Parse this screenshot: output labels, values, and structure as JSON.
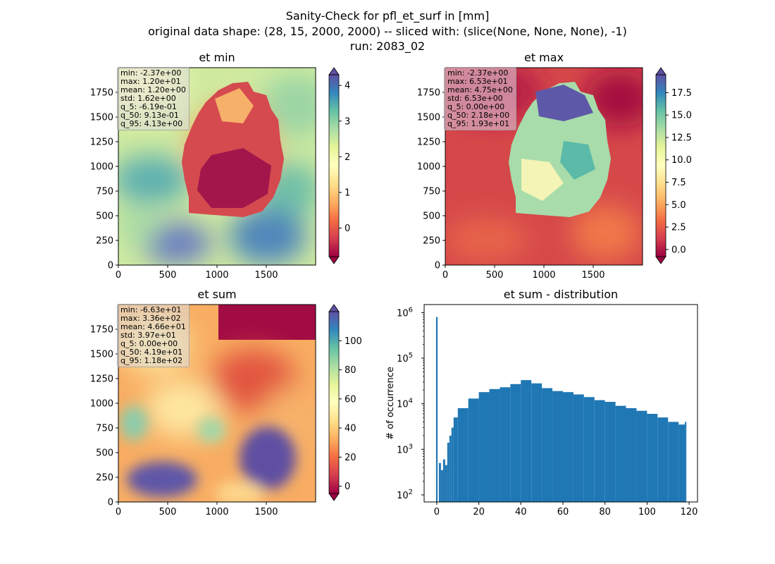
{
  "figure": {
    "title_lines": [
      "Sanity-Check for pfl_et_surf in [mm]",
      "original data shape: (28, 15, 2000, 2000) -- sliced with: (slice(None, None, None), -1)",
      "run: 2083_02"
    ]
  },
  "colormap": {
    "name": "Spectral",
    "stops": [
      "#9e0142",
      "#d53e4f",
      "#f46d43",
      "#fdae61",
      "#fee08b",
      "#ffffbf",
      "#e6f598",
      "#abdda4",
      "#66c2a5",
      "#3288bd",
      "#5e4fa2"
    ]
  },
  "chart_data": [
    {
      "type": "heatmap",
      "title": "et min",
      "x_ticks": [
        "0",
        "500",
        "1000",
        "1500"
      ],
      "y_ticks": [
        "0",
        "250",
        "500",
        "750",
        "1000",
        "1250",
        "1500",
        "1750"
      ],
      "xlim": [
        0,
        2000
      ],
      "ylim": [
        0,
        2000
      ],
      "colorbar": {
        "range": [
          -0.8,
          4.3
        ],
        "ticks": [
          "0",
          "1",
          "2",
          "3",
          "4"
        ],
        "tick_values": [
          0,
          1,
          2,
          3,
          4
        ],
        "extend": "both"
      },
      "stats": [
        "min: -2.37e+00",
        "max: 1.20e+01",
        "mean: 1.20e+00",
        "std: 1.62e+00",
        "q_5: -6.19e-01",
        "q_50: 9.13e-01",
        "q_95: 4.13e+00"
      ]
    },
    {
      "type": "heatmap",
      "title": "et max",
      "x_ticks": [
        "0",
        "500",
        "1000",
        "1500"
      ],
      "y_ticks": [
        "0",
        "250",
        "500",
        "750",
        "1000",
        "1250",
        "1500",
        "1750"
      ],
      "xlim": [
        0,
        2000
      ],
      "ylim": [
        0,
        2000
      ],
      "colorbar": {
        "range": [
          -0.8,
          19.5
        ],
        "ticks": [
          "0.0",
          "2.5",
          "5.0",
          "7.5",
          "10.0",
          "12.5",
          "15.0",
          "17.5"
        ],
        "tick_values": [
          0,
          2.5,
          5,
          7.5,
          10,
          12.5,
          15,
          17.5
        ],
        "extend": "both"
      },
      "stats": [
        "min: -2.37e+00",
        "max: 6.53e+01",
        "mean: 4.75e+00",
        "std: 6.53e+00",
        "q_5: 0.00e+00",
        "q_50: 2.18e+00",
        "q_95: 1.93e+01"
      ]
    },
    {
      "type": "heatmap",
      "title": "et sum",
      "x_ticks": [
        "0",
        "500",
        "1000",
        "1500"
      ],
      "y_ticks": [
        "0",
        "250",
        "500",
        "750",
        "1000",
        "1250",
        "1500",
        "1750"
      ],
      "xlim": [
        0,
        2000
      ],
      "ylim": [
        0,
        2000
      ],
      "colorbar": {
        "range": [
          -5,
          120
        ],
        "ticks": [
          "0",
          "20",
          "40",
          "60",
          "80",
          "100"
        ],
        "tick_values": [
          0,
          20,
          40,
          60,
          80,
          100
        ],
        "extend": "both"
      },
      "stats": [
        "min: -6.63e+01",
        "max: 3.36e+02",
        "mean: 4.66e+01",
        "std: 3.97e+01",
        "q_5: 0.00e+00",
        "q_50: 4.19e+01",
        "q_95: 1.18e+02"
      ]
    },
    {
      "type": "bar",
      "title": "et sum - distribution",
      "ylabel": "# of occurrence",
      "yscale": "log",
      "xlim": [
        -6,
        124
      ],
      "ylim": [
        70,
        1500000
      ],
      "x_ticks": [
        0,
        20,
        40,
        60,
        80,
        100,
        120
      ],
      "y_ticks": [
        {
          "value": 100,
          "label": "10",
          "exp": "2"
        },
        {
          "value": 1000,
          "label": "10",
          "exp": "3"
        },
        {
          "value": 10000,
          "label": "10",
          "exp": "4"
        },
        {
          "value": 100000,
          "label": "10",
          "exp": "5"
        },
        {
          "value": 1000000,
          "label": "10",
          "exp": "6"
        }
      ],
      "bar_color": "#1f77b4",
      "bins": [
        {
          "x": 0,
          "count": 800000
        },
        {
          "x": 1,
          "count": 500
        },
        {
          "x": 2,
          "count": 350
        },
        {
          "x": 3,
          "count": 600
        },
        {
          "x": 4,
          "count": 450
        },
        {
          "x": 5,
          "count": 1400
        },
        {
          "x": 6,
          "count": 2000
        },
        {
          "x": 7,
          "count": 3000
        },
        {
          "x": 8,
          "count": 5000
        },
        {
          "x": 10,
          "count": 8000
        },
        {
          "x": 15,
          "count": 13000
        },
        {
          "x": 20,
          "count": 18000
        },
        {
          "x": 25,
          "count": 21000
        },
        {
          "x": 30,
          "count": 23000
        },
        {
          "x": 35,
          "count": 27000
        },
        {
          "x": 40,
          "count": 33000
        },
        {
          "x": 45,
          "count": 28000
        },
        {
          "x": 50,
          "count": 22000
        },
        {
          "x": 55,
          "count": 19000
        },
        {
          "x": 60,
          "count": 18000
        },
        {
          "x": 65,
          "count": 16000
        },
        {
          "x": 70,
          "count": 14000
        },
        {
          "x": 75,
          "count": 12000
        },
        {
          "x": 80,
          "count": 11000
        },
        {
          "x": 85,
          "count": 9000
        },
        {
          "x": 90,
          "count": 8000
        },
        {
          "x": 95,
          "count": 7000
        },
        {
          "x": 100,
          "count": 6000
        },
        {
          "x": 105,
          "count": 5000
        },
        {
          "x": 110,
          "count": 4000
        },
        {
          "x": 115,
          "count": 3500
        },
        {
          "x": 118,
          "count": 4000
        }
      ]
    }
  ]
}
